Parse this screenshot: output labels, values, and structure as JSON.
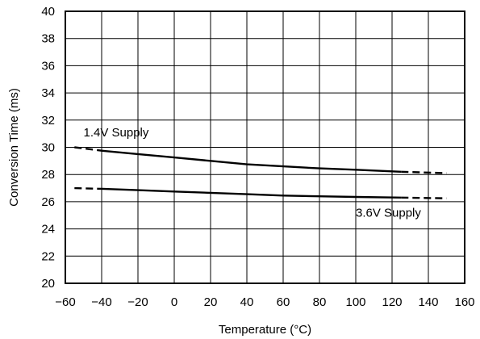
{
  "chart_data": {
    "type": "line",
    "title": "",
    "xlabel": "Temperature (°C)",
    "ylabel": "Conversion Time (ms)",
    "xlim": [
      -60,
      160
    ],
    "ylim": [
      20,
      40
    ],
    "grid": true,
    "x_ticks": [
      "−60",
      "−40",
      "−20",
      "0",
      "20",
      "40",
      "60",
      "80",
      "100",
      "120",
      "140",
      "160"
    ],
    "y_ticks": [
      "20",
      "22",
      "24",
      "26",
      "28",
      "30",
      "32",
      "34",
      "36",
      "38",
      "40"
    ],
    "x_tick_values": [
      -60,
      -40,
      -20,
      0,
      20,
      40,
      60,
      80,
      100,
      120,
      140,
      160
    ],
    "y_tick_values": [
      20,
      22,
      24,
      26,
      28,
      30,
      32,
      34,
      36,
      38,
      40
    ],
    "series": [
      {
        "name": "1.4V Supply",
        "x": [
          -55,
          -40,
          -20,
          0,
          20,
          40,
          60,
          80,
          100,
          125,
          150
        ],
        "y": [
          30.0,
          29.75,
          29.5,
          29.25,
          29.0,
          28.75,
          28.6,
          28.45,
          28.35,
          28.2,
          28.1
        ],
        "dashed_ranges": [
          [
            -55,
            -40
          ],
          [
            125,
            150
          ]
        ]
      },
      {
        "name": "3.6V Supply",
        "x": [
          -55,
          -40,
          -20,
          0,
          20,
          40,
          60,
          80,
          100,
          125,
          150
        ],
        "y": [
          27.0,
          26.95,
          26.85,
          26.75,
          26.65,
          26.55,
          26.45,
          26.4,
          26.35,
          26.3,
          26.25
        ],
        "dashed_ranges": [
          [
            -55,
            -40
          ],
          [
            125,
            150
          ]
        ]
      }
    ],
    "annotations": [
      {
        "text": "1.4V Supply",
        "x": -50,
        "y": 30.8
      },
      {
        "text": "3.6V Supply",
        "x": 100,
        "y": 24.9
      }
    ]
  }
}
